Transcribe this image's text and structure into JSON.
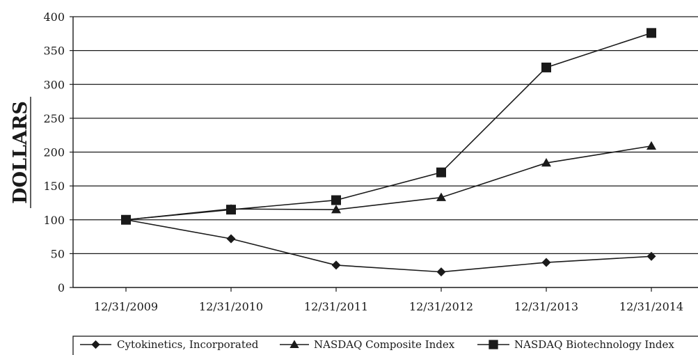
{
  "chart_data": {
    "type": "line",
    "ylabel": "DOLLARS",
    "xlabel": "",
    "title": "",
    "categories": [
      "12/31/2009",
      "12/31/2010",
      "12/31/2011",
      "12/31/2012",
      "12/31/2013",
      "12/31/2014"
    ],
    "ylim": [
      0,
      400
    ],
    "yticks": [
      0,
      50,
      100,
      150,
      200,
      250,
      300,
      350,
      400
    ],
    "grid": true,
    "legend_position": "bottom",
    "series": [
      {
        "name": "Cytokinetics, Incorporated",
        "marker": "diamond",
        "color": "#1a1a1a",
        "values": [
          100,
          72,
          33,
          23,
          37,
          46
        ]
      },
      {
        "name": "NASDAQ Composite Index",
        "marker": "triangle",
        "color": "#1a1a1a",
        "values": [
          100,
          116,
          115,
          133,
          184,
          209
        ]
      },
      {
        "name": "NASDAQ Biotechnology Index",
        "marker": "square",
        "color": "#1a1a1a",
        "values": [
          100,
          115,
          129,
          170,
          325,
          376
        ]
      }
    ]
  }
}
